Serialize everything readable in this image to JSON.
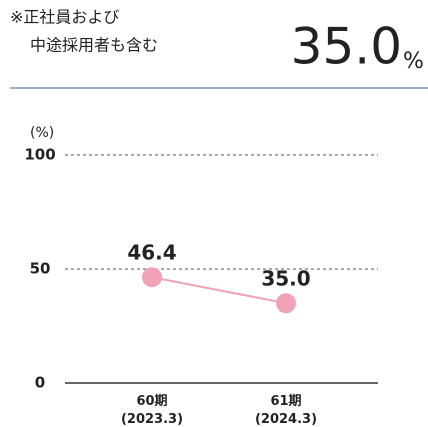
{
  "note": [
    "※正社員および",
    "中途採用者も含む"
  ],
  "headline": {
    "value": "35.0",
    "unit": "%"
  },
  "chart_data": {
    "type": "line",
    "y_label": "(%)",
    "categories": [
      "60期\n(2023.3)",
      "61期\n(2024.3)"
    ],
    "series": [
      {
        "name": null,
        "color": "#f2a2b6",
        "values": [
          46.4,
          35.0
        ],
        "value_labels": [
          "46.4",
          "35.0"
        ]
      }
    ],
    "ylim": [
      0,
      100
    ],
    "yticks": [
      0,
      50,
      100
    ],
    "grid": true
  }
}
